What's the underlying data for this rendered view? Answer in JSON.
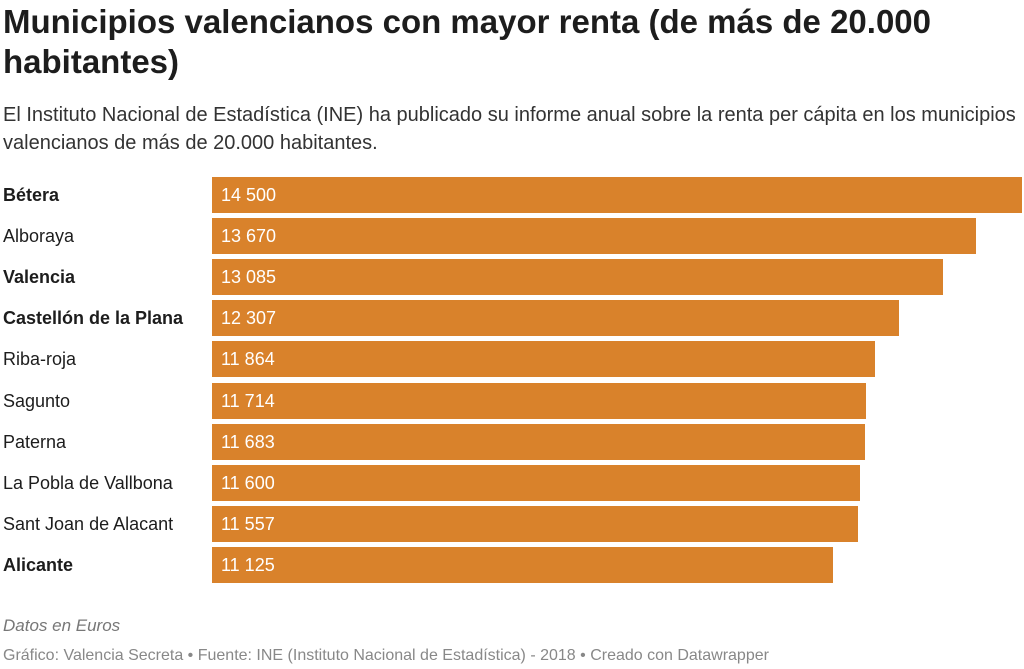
{
  "chart_data": {
    "type": "bar",
    "orientation": "horizontal",
    "title": "Municipios valencianos con mayor renta (de más de 20.000 habitantes)",
    "subtitle": "El Instituto Nacional de Estadística (INE) ha publicado su informe anual sobre la renta per cápita en los municipios valencianos de más de 20.000 habitantes.",
    "categories": [
      "Bétera",
      "Alboraya",
      "Valencia",
      "Castellón de la Plana",
      "Riba-roja",
      "Sagunto",
      "Paterna",
      "La Pobla de Vallbona",
      "Sant Joan de Alacant",
      "Alicante"
    ],
    "values": [
      14500,
      13670,
      13085,
      12307,
      11864,
      11714,
      11683,
      11600,
      11557,
      11125
    ],
    "value_labels": [
      "14 500",
      "13 670",
      "13 085",
      "12 307",
      "11 864",
      "11 714",
      "11 683",
      "11 600",
      "11 557",
      "11 125"
    ],
    "bold_categories": [
      "Bétera",
      "Valencia",
      "Castellón de la Plana",
      "Alicante"
    ],
    "xlim": [
      0,
      14500
    ],
    "bar_color": "#d9822b",
    "grid": false,
    "notes": "Datos en Euros",
    "footer": "Gráfico: Valencia Secreta • Fuente: INE (Instituto Nacional de Estadística) - 2018 • Creado con Datawrapper"
  }
}
